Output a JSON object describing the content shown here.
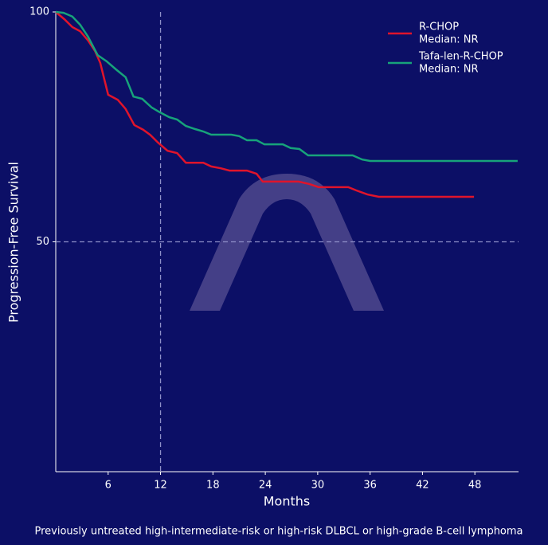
{
  "chart_data": {
    "type": "line",
    "xlabel": "Months",
    "ylabel": "Progression-Free Survival",
    "caption": "Previously untreated high-intermediate-risk or high-risk DLBCL or high-grade B-cell lymphoma",
    "xlim": [
      0,
      53
    ],
    "xticks": [
      6,
      12,
      18,
      24,
      30,
      36,
      42,
      48
    ],
    "ylim": [
      0,
      100
    ],
    "yticks": [
      50,
      100
    ],
    "reference_lines": {
      "x": 12,
      "y": 50
    },
    "legend": "upper right",
    "series": [
      {
        "name": "R-CHOP",
        "median": "Median: NR",
        "color": "#e0142b",
        "x": [
          0,
          1,
          1.9,
          2.8,
          3.7,
          4.5,
          5.1,
          6,
          7.1,
          8,
          9,
          10,
          10.8,
          11.7,
          12.8,
          13.9,
          14.9,
          16.9,
          17.8,
          18.9,
          19.9,
          21.9,
          23,
          23.7,
          27.8,
          29,
          30.1,
          33.5,
          34.4,
          35.7,
          37,
          47.9
        ],
        "values": [
          100,
          98.4,
          96.7,
          95.8,
          93.8,
          91.5,
          88.9,
          82,
          80.9,
          78.9,
          75.4,
          74.4,
          73.3,
          71.6,
          69.8,
          69.3,
          67.2,
          67.2,
          66.4,
          66,
          65.5,
          65.5,
          64.8,
          63.1,
          63.1,
          62.6,
          61.9,
          61.9,
          61.2,
          60.3,
          59.8,
          59.8
        ]
      },
      {
        "name": "Tafa-len-R-CHOP",
        "median": "Median: NR",
        "color": "#17a37a",
        "x": [
          0,
          0.9,
          1.9,
          2.8,
          3.7,
          4.8,
          5.8,
          6.9,
          8,
          8.9,
          9.9,
          11,
          11.9,
          13,
          13.9,
          14.9,
          16,
          16.9,
          17.8,
          20.1,
          21,
          21.9,
          23,
          23.9,
          26,
          26.9,
          27.9,
          28.9,
          34,
          35.1,
          36,
          52.9
        ],
        "values": [
          100,
          99.8,
          99,
          97.2,
          94.6,
          90.6,
          89.3,
          87.5,
          85.8,
          81.6,
          81.1,
          79.2,
          78.2,
          77.1,
          76.6,
          75.2,
          74.5,
          74,
          73.3,
          73.3,
          73,
          72.1,
          72.1,
          71.2,
          71.2,
          70.4,
          70.2,
          68.8,
          68.8,
          67.9,
          67.6,
          67.6
        ]
      }
    ]
  }
}
